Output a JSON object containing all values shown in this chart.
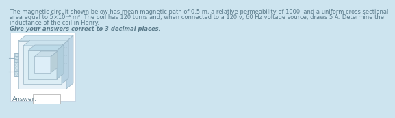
{
  "background_color": "#cde4ef",
  "text_color": "#5a7a8a",
  "line1": "The magnetic circuit shown below has mean magnetic path of 0.5 m, a relative permeability of 1000, and a uniform cross sectional",
  "line2": "area equal to 5×10⁻⁴ m². The coil has 120 turns and, when connected to a 120 v, 60 Hz voltage source, draws 5 A. Determine the",
  "line3": "inductance of the coil in Henry.",
  "subtitle": "Give your answers correct to 3 decimal places.",
  "answer_label": "Answer:",
  "core_face_color": "#e8f2f8",
  "core_top_color": "#d0e5f0",
  "core_right_color": "#c0d8e8",
  "core_outline_color": "#9ab5c5",
  "coil_color": "#9ab5c5",
  "inner_face_color": "#e0eef5",
  "white_box": "#ffffff",
  "ans_border": "#aaaaaa"
}
